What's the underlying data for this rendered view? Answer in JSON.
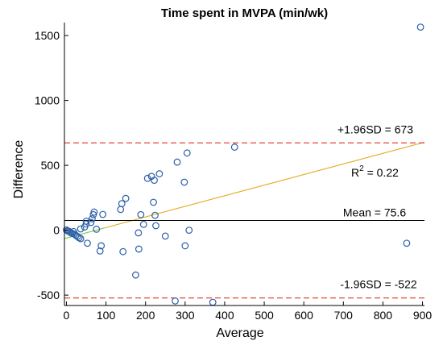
{
  "chart_data": {
    "type": "scatter",
    "title": "Time spent in MVPA (min/wk)",
    "xlabel": "Average",
    "ylabel": "Difference",
    "xlim": [
      -5,
      905
    ],
    "ylim": [
      -580,
      1600
    ],
    "xticks": [
      0,
      100,
      200,
      300,
      400,
      500,
      600,
      700,
      800,
      900
    ],
    "yticks": [
      -500,
      0,
      500,
      1000,
      1500
    ],
    "points": [
      {
        "x": 0,
        "y": 2
      },
      {
        "x": 3,
        "y": -5
      },
      {
        "x": 6,
        "y": -8
      },
      {
        "x": 9,
        "y": -15
      },
      {
        "x": 12,
        "y": -20
      },
      {
        "x": 15,
        "y": -25
      },
      {
        "x": 18,
        "y": -10
      },
      {
        "x": 20,
        "y": -30
      },
      {
        "x": 24,
        "y": -40
      },
      {
        "x": 28,
        "y": -48
      },
      {
        "x": 32,
        "y": -58
      },
      {
        "x": 36,
        "y": -65
      },
      {
        "x": 36,
        "y": 10
      },
      {
        "x": 46,
        "y": 25
      },
      {
        "x": 50,
        "y": 48
      },
      {
        "x": 50,
        "y": 70
      },
      {
        "x": 53,
        "y": -100
      },
      {
        "x": 62,
        "y": 60
      },
      {
        "x": 65,
        "y": 88
      },
      {
        "x": 68,
        "y": 120
      },
      {
        "x": 70,
        "y": 140
      },
      {
        "x": 76,
        "y": 8
      },
      {
        "x": 85,
        "y": -160
      },
      {
        "x": 88,
        "y": -120
      },
      {
        "x": 92,
        "y": 122
      },
      {
        "x": 137,
        "y": 160
      },
      {
        "x": 140,
        "y": 205
      },
      {
        "x": 143,
        "y": -165
      },
      {
        "x": 150,
        "y": 245
      },
      {
        "x": 175,
        "y": -345
      },
      {
        "x": 182,
        "y": -20
      },
      {
        "x": 183,
        "y": -145
      },
      {
        "x": 188,
        "y": 120
      },
      {
        "x": 195,
        "y": 45
      },
      {
        "x": 205,
        "y": 400
      },
      {
        "x": 215,
        "y": 415
      },
      {
        "x": 220,
        "y": 215
      },
      {
        "x": 222,
        "y": 385
      },
      {
        "x": 224,
        "y": 115
      },
      {
        "x": 226,
        "y": 35
      },
      {
        "x": 235,
        "y": 435
      },
      {
        "x": 250,
        "y": -45
      },
      {
        "x": 275,
        "y": -545
      },
      {
        "x": 280,
        "y": 525
      },
      {
        "x": 298,
        "y": 370
      },
      {
        "x": 300,
        "y": -120
      },
      {
        "x": 305,
        "y": 595
      },
      {
        "x": 310,
        "y": 0
      },
      {
        "x": 370,
        "y": -555
      },
      {
        "x": 425,
        "y": 640
      },
      {
        "x": 860,
        "y": -100
      },
      {
        "x": 895,
        "y": 1565
      }
    ],
    "mean": {
      "value": 75.6,
      "label": "Mean = 75.6"
    },
    "upper_loa": {
      "value": 673,
      "label": "+1.96SD = 673"
    },
    "lower_loa": {
      "value": -522,
      "label": "-1.96SD = -522"
    },
    "regression": {
      "x": [
        -5,
        905
      ],
      "y": [
        -65,
        678
      ],
      "label_prefix": "R",
      "label_power": "2",
      "label_value": " = 0.22"
    },
    "grid": false,
    "colors": {
      "points": "#2b5fa8",
      "mean_line": "#000000",
      "loa_line": "#e8443a",
      "regression_line": "#e6b030",
      "regression_line_low": "#7ecb5a"
    }
  }
}
